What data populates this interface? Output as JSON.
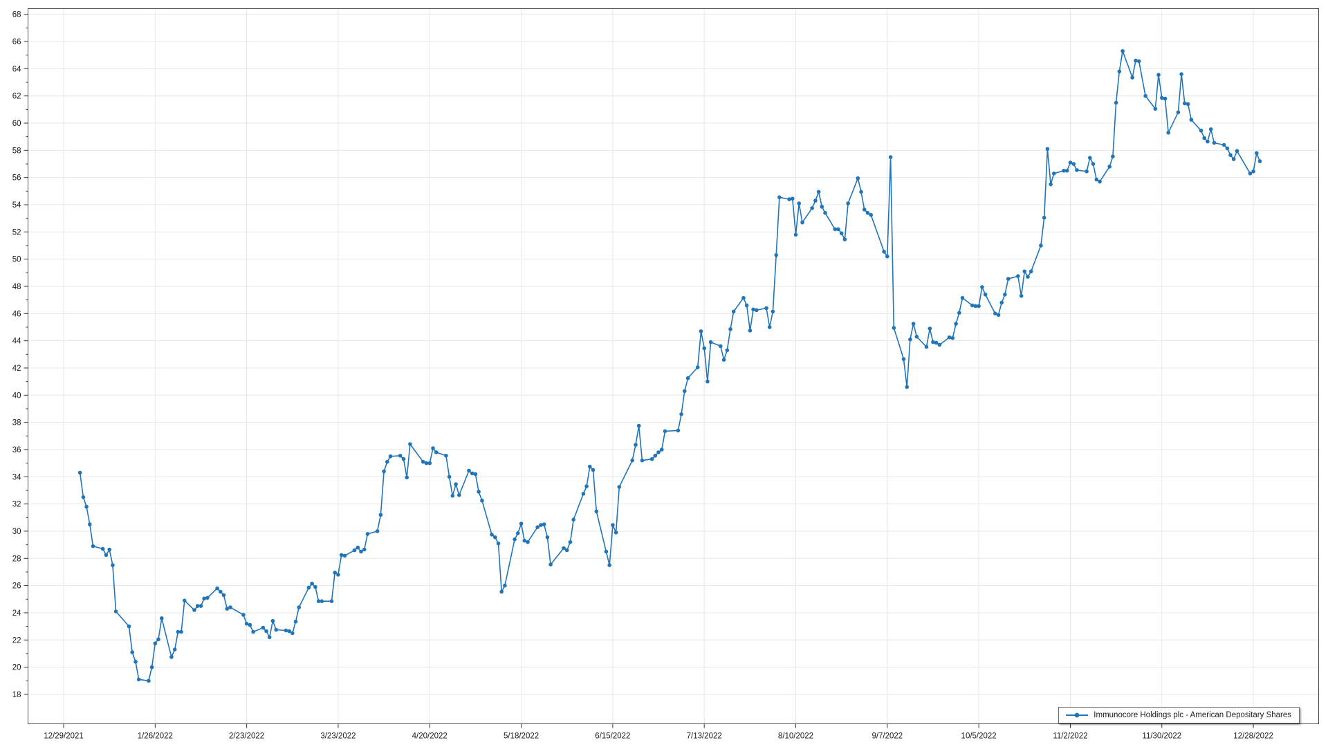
{
  "chart_data": {
    "type": "line",
    "title": "",
    "xlabel": "",
    "ylabel": "",
    "grid": true,
    "legend_position": "bottom-right",
    "colors": {
      "series_line": "#2074b8",
      "series_marker": "#2074b8",
      "gridline": "#e7e7e7",
      "axis_border": "#4a4a4a",
      "tick": "#333333",
      "label_text": "#1a1a1a",
      "background": "#ffffff",
      "legend_border": "#6e6e6e"
    },
    "x_axis": {
      "tick_labels": [
        "12/29/2021",
        "1/26/2022",
        "2/23/2022",
        "3/23/2022",
        "4/20/2022",
        "5/18/2022",
        "6/15/2022",
        "7/13/2022",
        "8/10/2022",
        "9/7/2022",
        "10/5/2022",
        "11/2/2022",
        "11/30/2022",
        "12/28/2022"
      ],
      "tick_interval_days": 28
    },
    "y_axis": {
      "min": 18,
      "max": 68,
      "tick_step": 2,
      "minor_tick_step": 1
    },
    "series": [
      {
        "name": "Immunocore Holdings plc - American Depositary Shares",
        "color": "#2074b8",
        "dates": [
          "1/3/2022",
          "1/4/2022",
          "1/5/2022",
          "1/6/2022",
          "1/7/2022",
          "1/10/2022",
          "1/11/2022",
          "1/12/2022",
          "1/13/2022",
          "1/14/2022",
          "1/18/2022",
          "1/19/2022",
          "1/20/2022",
          "1/21/2022",
          "1/24/2022",
          "1/25/2022",
          "1/26/2022",
          "1/27/2022",
          "1/28/2022",
          "1/31/2022",
          "2/1/2022",
          "2/2/2022",
          "2/3/2022",
          "2/4/2022",
          "2/7/2022",
          "2/8/2022",
          "2/9/2022",
          "2/10/2022",
          "2/11/2022",
          "2/14/2022",
          "2/15/2022",
          "2/16/2022",
          "2/17/2022",
          "2/18/2022",
          "2/22/2022",
          "2/23/2022",
          "2/24/2022",
          "2/25/2022",
          "2/28/2022",
          "3/1/2022",
          "3/2/2022",
          "3/3/2022",
          "3/4/2022",
          "3/7/2022",
          "3/8/2022",
          "3/9/2022",
          "3/10/2022",
          "3/11/2022",
          "3/14/2022",
          "3/15/2022",
          "3/16/2022",
          "3/17/2022",
          "3/18/2022",
          "3/21/2022",
          "3/22/2022",
          "3/23/2022",
          "3/24/2022",
          "3/25/2022",
          "3/28/2022",
          "3/29/2022",
          "3/30/2022",
          "3/31/2022",
          "4/1/2022",
          "4/4/2022",
          "4/5/2022",
          "4/6/2022",
          "4/7/2022",
          "4/8/2022",
          "4/11/2022",
          "4/12/2022",
          "4/13/2022",
          "4/14/2022",
          "4/18/2022",
          "4/19/2022",
          "4/20/2022",
          "4/21/2022",
          "4/22/2022",
          "4/25/2022",
          "4/26/2022",
          "4/27/2022",
          "4/28/2022",
          "4/29/2022",
          "5/2/2022",
          "5/3/2022",
          "5/4/2022",
          "5/5/2022",
          "5/6/2022",
          "5/9/2022",
          "5/10/2022",
          "5/11/2022",
          "5/12/2022",
          "5/13/2022",
          "5/16/2022",
          "5/17/2022",
          "5/18/2022",
          "5/19/2022",
          "5/20/2022",
          "5/23/2022",
          "5/24/2022",
          "5/25/2022",
          "5/26/2022",
          "5/27/2022",
          "5/31/2022",
          "6/1/2022",
          "6/2/2022",
          "6/3/2022",
          "6/6/2022",
          "6/7/2022",
          "6/8/2022",
          "6/9/2022",
          "6/10/2022",
          "6/13/2022",
          "6/14/2022",
          "6/15/2022",
          "6/16/2022",
          "6/17/2022",
          "6/21/2022",
          "6/22/2022",
          "6/23/2022",
          "6/24/2022",
          "6/27/2022",
          "6/28/2022",
          "6/29/2022",
          "6/30/2022",
          "7/1/2022",
          "7/5/2022",
          "7/6/2022",
          "7/7/2022",
          "7/8/2022",
          "7/11/2022",
          "7/12/2022",
          "7/13/2022",
          "7/14/2022",
          "7/15/2022",
          "7/18/2022",
          "7/19/2022",
          "7/20/2022",
          "7/21/2022",
          "7/22/2022",
          "7/25/2022",
          "7/26/2022",
          "7/27/2022",
          "7/28/2022",
          "7/29/2022",
          "8/1/2022",
          "8/2/2022",
          "8/3/2022",
          "8/4/2022",
          "8/5/2022",
          "8/8/2022",
          "8/9/2022",
          "8/10/2022",
          "8/11/2022",
          "8/12/2022",
          "8/15/2022",
          "8/16/2022",
          "8/17/2022",
          "8/18/2022",
          "8/19/2022",
          "8/22/2022",
          "8/23/2022",
          "8/24/2022",
          "8/25/2022",
          "8/26/2022",
          "8/29/2022",
          "8/30/2022",
          "8/31/2022",
          "9/1/2022",
          "9/2/2022",
          "9/6/2022",
          "9/7/2022",
          "9/8/2022",
          "9/9/2022",
          "9/12/2022",
          "9/13/2022",
          "9/14/2022",
          "9/15/2022",
          "9/16/2022",
          "9/19/2022",
          "9/20/2022",
          "9/21/2022",
          "9/22/2022",
          "9/23/2022",
          "9/26/2022",
          "9/27/2022",
          "9/28/2022",
          "9/29/2022",
          "9/30/2022",
          "10/3/2022",
          "10/4/2022",
          "10/5/2022",
          "10/6/2022",
          "10/7/2022",
          "10/10/2022",
          "10/11/2022",
          "10/12/2022",
          "10/13/2022",
          "10/14/2022",
          "10/17/2022",
          "10/18/2022",
          "10/19/2022",
          "10/20/2022",
          "10/21/2022",
          "10/24/2022",
          "10/25/2022",
          "10/26/2022",
          "10/27/2022",
          "10/28/2022",
          "10/31/2022",
          "11/1/2022",
          "11/2/2022",
          "11/3/2022",
          "11/4/2022",
          "11/7/2022",
          "11/8/2022",
          "11/9/2022",
          "11/10/2022",
          "11/11/2022",
          "11/14/2022",
          "11/15/2022",
          "11/16/2022",
          "11/17/2022",
          "11/18/2022",
          "11/21/2022",
          "11/22/2022",
          "11/23/2022",
          "11/25/2022",
          "11/28/2022",
          "11/29/2022",
          "11/30/2022",
          "12/1/2022",
          "12/2/2022",
          "12/5/2022",
          "12/6/2022",
          "12/7/2022",
          "12/8/2022",
          "12/9/2022",
          "12/12/2022",
          "12/13/2022",
          "12/14/2022",
          "12/15/2022",
          "12/16/2022",
          "12/19/2022",
          "12/20/2022",
          "12/21/2022",
          "12/22/2022",
          "12/23/2022",
          "12/27/2022",
          "12/28/2022",
          "12/29/2022",
          "12/30/2022"
        ],
        "values": [
          34.3,
          32.5,
          31.8,
          30.5,
          28.9,
          28.7,
          28.25,
          28.65,
          27.5,
          24.1,
          23.0,
          21.1,
          20.4,
          19.1,
          19.0,
          20.0,
          21.75,
          22.05,
          23.6,
          20.75,
          21.3,
          22.6,
          22.6,
          24.9,
          24.2,
          24.5,
          24.5,
          25.05,
          25.1,
          25.8,
          25.55,
          25.3,
          24.3,
          24.4,
          23.85,
          23.2,
          23.1,
          22.6,
          22.9,
          22.65,
          22.2,
          23.4,
          22.75,
          22.7,
          22.65,
          22.5,
          23.35,
          24.4,
          25.85,
          26.15,
          25.9,
          24.85,
          24.85,
          24.85,
          26.95,
          26.8,
          28.25,
          28.2,
          28.6,
          28.8,
          28.5,
          28.65,
          29.8,
          30.0,
          31.2,
          34.4,
          35.1,
          35.5,
          35.55,
          35.3,
          33.95,
          36.4,
          35.1,
          35.0,
          35.0,
          36.1,
          35.8,
          35.55,
          34.0,
          32.6,
          33.45,
          32.65,
          34.45,
          34.25,
          34.2,
          32.9,
          32.25,
          29.75,
          29.55,
          29.1,
          25.55,
          26.0,
          29.4,
          29.85,
          30.55,
          29.3,
          29.2,
          30.3,
          30.45,
          30.5,
          29.55,
          27.55,
          28.75,
          28.6,
          29.2,
          30.85,
          32.75,
          33.3,
          34.75,
          34.5,
          31.45,
          28.5,
          27.5,
          30.45,
          29.9,
          33.25,
          35.2,
          36.35,
          37.75,
          35.2,
          35.3,
          35.55,
          35.8,
          36.0,
          37.35,
          37.4,
          38.6,
          40.3,
          41.25,
          42.05,
          44.7,
          43.45,
          41.0,
          43.9,
          43.6,
          42.6,
          43.3,
          44.85,
          46.15,
          47.15,
          46.6,
          44.75,
          46.3,
          46.25,
          46.4,
          45.0,
          46.15,
          50.3,
          54.55,
          54.4,
          54.45,
          51.8,
          54.1,
          52.7,
          53.75,
          54.3,
          54.95,
          53.85,
          53.4,
          52.2,
          52.2,
          51.9,
          51.45,
          54.1,
          55.95,
          54.95,
          53.65,
          53.4,
          53.25,
          50.55,
          50.2,
          57.5,
          44.95,
          42.65,
          40.6,
          44.1,
          45.25,
          44.3,
          43.55,
          44.9,
          43.9,
          43.85,
          43.7,
          44.25,
          44.2,
          45.25,
          46.05,
          47.15,
          46.6,
          46.55,
          46.55,
          47.95,
          47.4,
          46.0,
          45.9,
          46.8,
          47.4,
          48.55,
          48.75,
          47.3,
          49.1,
          48.7,
          49.1,
          51.0,
          53.05,
          58.1,
          55.5,
          56.3,
          56.5,
          56.5,
          57.1,
          57.0,
          56.55,
          56.45,
          57.45,
          57.0,
          55.85,
          55.7,
          56.8,
          57.55,
          61.5,
          63.8,
          65.3,
          63.35,
          64.6,
          64.55,
          62.0,
          61.05,
          63.55,
          61.85,
          61.8,
          59.3,
          60.8,
          63.6,
          61.45,
          61.4,
          60.25,
          59.45,
          58.9,
          58.65,
          59.55,
          58.55,
          58.4,
          58.15,
          57.65,
          57.35,
          57.95,
          56.3,
          56.45,
          57.8,
          57.2
        ]
      }
    ]
  },
  "legend": {
    "label": "Immunocore Holdings plc - American Depositary Shares"
  }
}
